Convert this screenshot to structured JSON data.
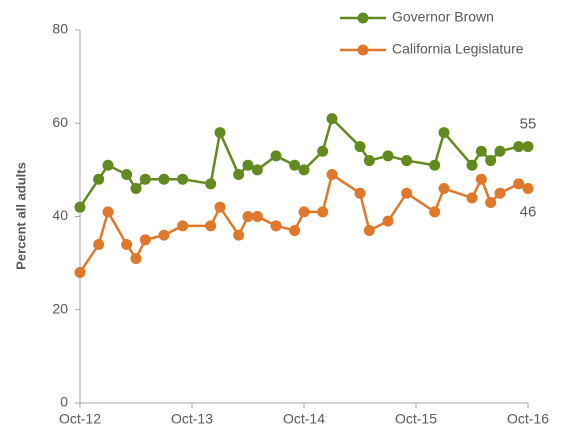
{
  "chart_data": {
    "type": "line",
    "y_label": "Percent all adults",
    "x": [
      "2012-10",
      "2012-12",
      "2013-01",
      "2013-03",
      "2013-04",
      "2013-05",
      "2013-07",
      "2013-09",
      "2013-12",
      "2014-01",
      "2014-03",
      "2014-04",
      "2014-05",
      "2014-07",
      "2014-09",
      "2014-10",
      "2014-12",
      "2015-01",
      "2015-04",
      "2015-05",
      "2015-07",
      "2015-09",
      "2015-12",
      "2016-01",
      "2016-04",
      "2016-05",
      "2016-06",
      "2016-07",
      "2016-09",
      "2016-10"
    ],
    "series": [
      {
        "name": "Governor Brown",
        "color": "#638a1e",
        "values": [
          42,
          48,
          51,
          49,
          46,
          48,
          48,
          48,
          47,
          58,
          49,
          51,
          50,
          53,
          51,
          50,
          54,
          61,
          55,
          52,
          53,
          52,
          51,
          58,
          51,
          54,
          52,
          54,
          55,
          55
        ]
      },
      {
        "name": "California Legislature",
        "color": "#e0782c",
        "values": [
          28,
          34,
          41,
          34,
          31,
          35,
          36,
          38,
          38,
          42,
          36,
          40,
          40,
          38,
          37,
          41,
          41,
          49,
          45,
          37,
          39,
          45,
          41,
          46,
          44,
          48,
          43,
          45,
          47,
          46
        ]
      }
    ],
    "annotations": [
      "55",
      "46"
    ],
    "xlim": [
      "2012-10",
      "2016-10"
    ],
    "xticks": [
      {
        "value": "2012-10",
        "label": "Oct-12"
      },
      {
        "value": "2013-10",
        "label": "Oct-13"
      },
      {
        "value": "2014-10",
        "label": "Oct-14"
      },
      {
        "value": "2015-10",
        "label": "Oct-15"
      },
      {
        "value": "2016-10",
        "label": "Oct-16"
      }
    ],
    "ylim": [
      0,
      80
    ],
    "yticks": [
      0,
      20,
      40,
      60,
      80
    ],
    "grid": false,
    "legend": "top-right"
  }
}
